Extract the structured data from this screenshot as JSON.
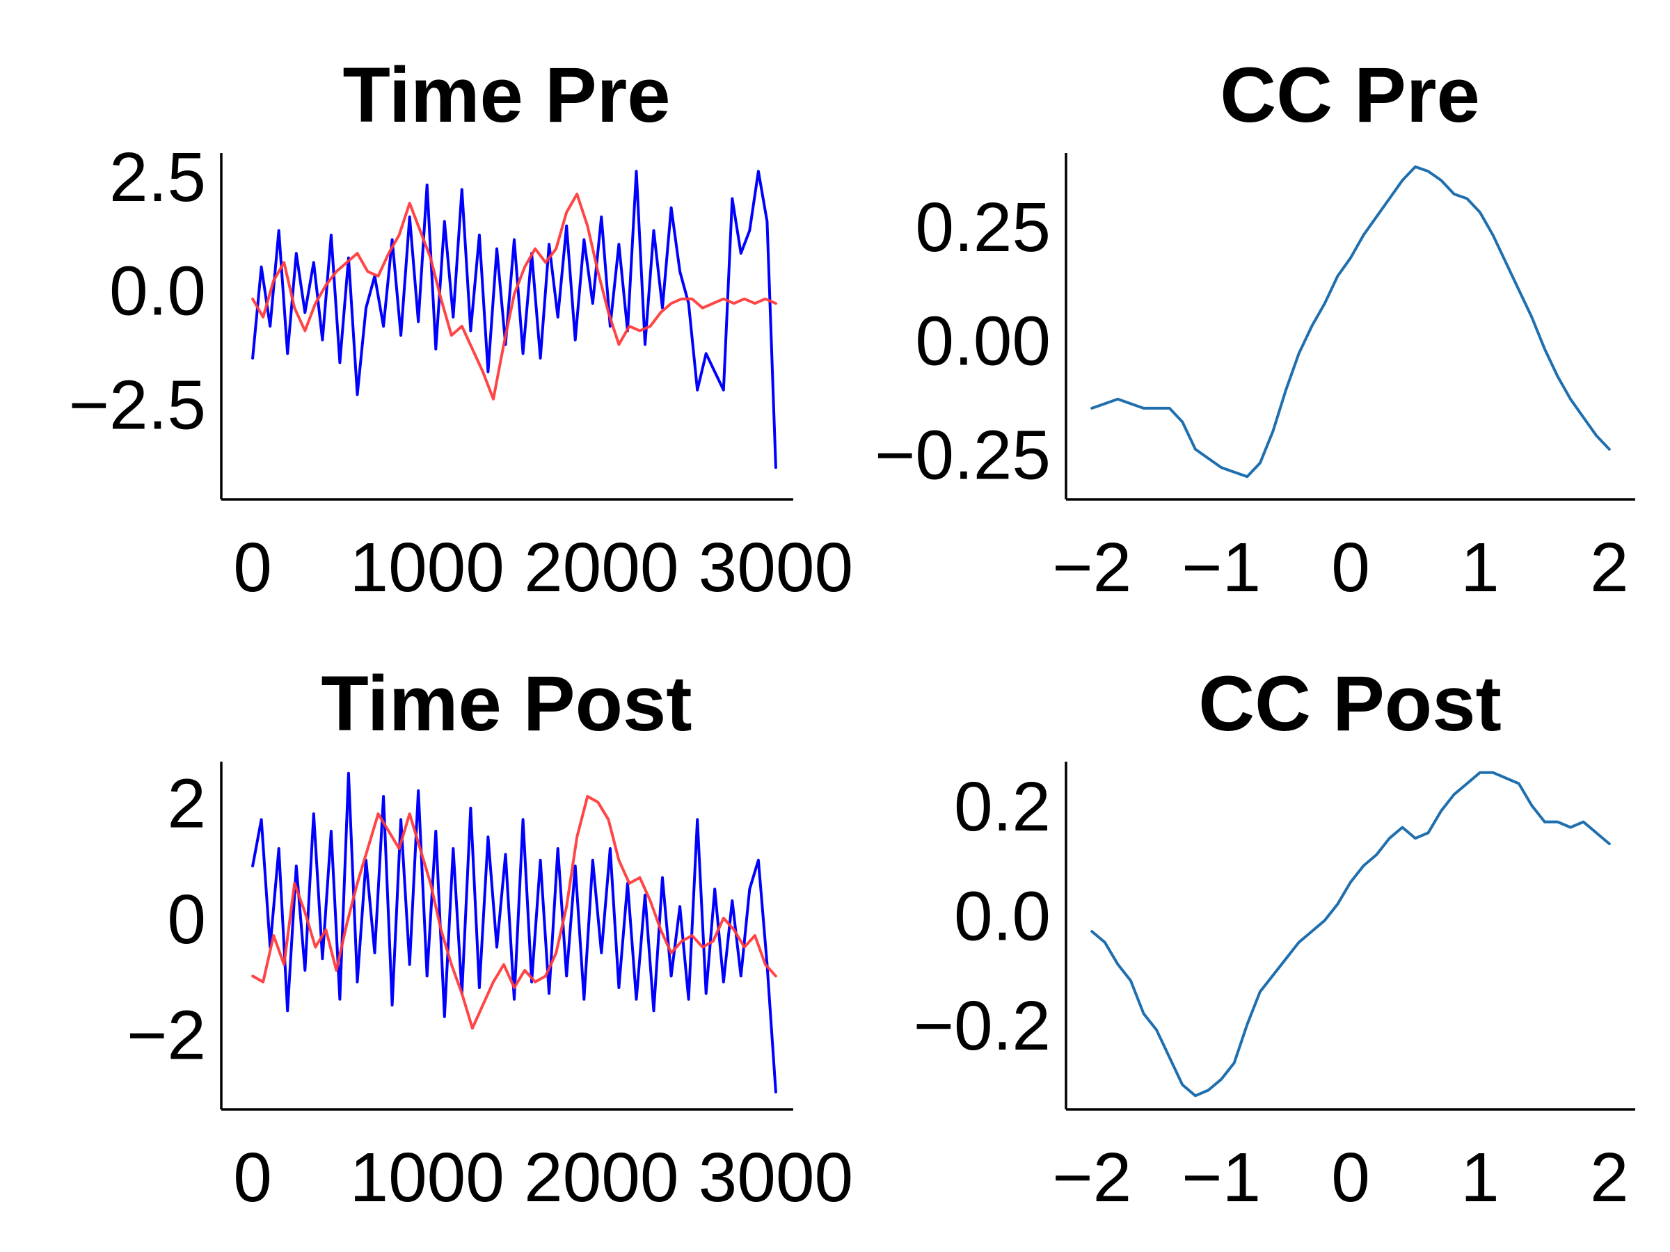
{
  "colors": {
    "time_primary": "#0000ff",
    "time_secondary": "#ff3b3b",
    "cc": "#1f6fae",
    "axes": "#000000",
    "background": "#ffffff"
  },
  "chart_data": [
    {
      "type": "line",
      "title": "Time Pre",
      "xlabel": "",
      "ylabel": "",
      "xlim": [
        -180,
        3100
      ],
      "ylim": [
        -4.6,
        3.0
      ],
      "xticks": [
        0,
        1000,
        2000,
        3000
      ],
      "xtick_labels": [
        "0",
        "1000",
        "2000",
        "3000"
      ],
      "yticks": [
        -2.5,
        0.0,
        2.5
      ],
      "ytick_labels": [
        "−2.5",
        "0.0",
        "2.5"
      ],
      "grid": false,
      "legend": "none",
      "series": [
        {
          "color": "#0000ff",
          "x": [
            0,
            50,
            100,
            150,
            200,
            250,
            300,
            350,
            400,
            450,
            500,
            550,
            600,
            650,
            700,
            750,
            800,
            850,
            900,
            950,
            1000,
            1050,
            1100,
            1150,
            1200,
            1250,
            1300,
            1350,
            1400,
            1450,
            1500,
            1550,
            1600,
            1650,
            1700,
            1750,
            1800,
            1850,
            1900,
            1950,
            2000,
            2050,
            2100,
            2150,
            2200,
            2250,
            2300,
            2350,
            2400,
            2450,
            2500,
            2550,
            2600,
            2650,
            2700,
            2750,
            2800,
            2850,
            2900,
            2950,
            3000
          ],
          "y": [
            -1.5,
            0.5,
            -0.8,
            1.3,
            -1.4,
            0.8,
            -0.5,
            0.6,
            -1.1,
            1.2,
            -1.6,
            0.7,
            -2.3,
            -0.4,
            0.3,
            -0.8,
            1.1,
            -1.0,
            1.6,
            -0.7,
            2.3,
            -1.3,
            1.5,
            -0.6,
            2.2,
            -0.9,
            1.2,
            -1.8,
            0.9,
            -1.2,
            1.1,
            -1.4,
            0.8,
            -1.5,
            1.0,
            -0.6,
            1.4,
            -1.1,
            1.1,
            -0.3,
            1.6,
            -0.8,
            1.0,
            -0.9,
            2.6,
            -1.2,
            1.3,
            -0.4,
            1.8,
            0.4,
            -0.3,
            -2.2,
            -1.4,
            -1.8,
            -2.2,
            2.0,
            0.8,
            1.3,
            2.6,
            1.5,
            -3.9
          ]
        },
        {
          "color": "#ff3b3b",
          "x": [
            0,
            60,
            120,
            180,
            240,
            300,
            360,
            420,
            480,
            540,
            600,
            660,
            720,
            780,
            840,
            900,
            960,
            1020,
            1080,
            1140,
            1200,
            1260,
            1320,
            1380,
            1440,
            1500,
            1560,
            1620,
            1680,
            1740,
            1800,
            1860,
            1920,
            1980,
            2040,
            2100,
            2160,
            2220,
            2280,
            2340,
            2400,
            2460,
            2520,
            2580,
            2640,
            2700,
            2760,
            2820,
            2880,
            2940,
            3000
          ],
          "y": [
            -0.2,
            -0.6,
            0.2,
            0.6,
            -0.4,
            -0.9,
            -0.3,
            0.1,
            0.4,
            0.6,
            0.8,
            0.4,
            0.3,
            0.8,
            1.2,
            1.9,
            1.3,
            0.7,
            -0.2,
            -1.0,
            -0.8,
            -1.3,
            -1.8,
            -2.4,
            -1.2,
            -0.1,
            0.5,
            0.9,
            0.6,
            0.9,
            1.7,
            2.1,
            1.4,
            0.4,
            -0.5,
            -1.2,
            -0.8,
            -0.9,
            -0.8,
            -0.5,
            -0.3,
            -0.2,
            -0.2,
            -0.4,
            -0.3,
            -0.2,
            -0.3,
            -0.2,
            -0.3,
            -0.2,
            -0.3
          ]
        }
      ]
    },
    {
      "type": "line",
      "title": "CC Pre",
      "xlabel": "",
      "ylabel": "",
      "xlim": [
        -2.2,
        2.2
      ],
      "ylim": [
        -0.35,
        0.41
      ],
      "xticks": [
        -2,
        -1,
        0,
        1,
        2
      ],
      "xtick_labels": [
        "−2",
        "−1",
        "0",
        "1",
        "2"
      ],
      "yticks": [
        -0.25,
        0.0,
        0.25
      ],
      "ytick_labels": [
        "−0.25",
        "0.00",
        "0.25"
      ],
      "grid": false,
      "legend": "none",
      "series": [
        {
          "color": "#1f6fae",
          "x": [
            -2.0,
            -1.9,
            -1.8,
            -1.7,
            -1.6,
            -1.5,
            -1.4,
            -1.3,
            -1.2,
            -1.1,
            -1.0,
            -0.9,
            -0.8,
            -0.7,
            -0.6,
            -0.5,
            -0.4,
            -0.3,
            -0.2,
            -0.1,
            0.0,
            0.1,
            0.2,
            0.3,
            0.4,
            0.5,
            0.6,
            0.7,
            0.8,
            0.9,
            1.0,
            1.1,
            1.2,
            1.3,
            1.4,
            1.5,
            1.6,
            1.7,
            1.8,
            1.9,
            2.0
          ],
          "y": [
            -0.15,
            -0.14,
            -0.13,
            -0.14,
            -0.15,
            -0.15,
            -0.15,
            -0.18,
            -0.24,
            -0.26,
            -0.28,
            -0.29,
            -0.3,
            -0.27,
            -0.2,
            -0.11,
            -0.03,
            0.03,
            0.08,
            0.14,
            0.18,
            0.23,
            0.27,
            0.31,
            0.35,
            0.38,
            0.37,
            0.35,
            0.32,
            0.31,
            0.28,
            0.23,
            0.17,
            0.11,
            0.05,
            -0.02,
            -0.08,
            -0.13,
            -0.17,
            -0.21,
            -0.24
          ]
        }
      ]
    },
    {
      "type": "line",
      "title": "Time Post",
      "xlabel": "",
      "ylabel": "",
      "xlim": [
        -180,
        3100
      ],
      "ylim": [
        -3.3,
        2.7
      ],
      "xticks": [
        0,
        1000,
        2000,
        3000
      ],
      "xtick_labels": [
        "0",
        "1000",
        "2000",
        "3000"
      ],
      "yticks": [
        -2,
        0,
        2
      ],
      "ytick_labels": [
        "−2",
        "0",
        "2"
      ],
      "grid": false,
      "legend": "none",
      "series": [
        {
          "color": "#0000ff",
          "x": [
            0,
            50,
            100,
            150,
            200,
            250,
            300,
            350,
            400,
            450,
            500,
            550,
            600,
            650,
            700,
            750,
            800,
            850,
            900,
            950,
            1000,
            1050,
            1100,
            1150,
            1200,
            1250,
            1300,
            1350,
            1400,
            1450,
            1500,
            1550,
            1600,
            1650,
            1700,
            1750,
            1800,
            1850,
            1900,
            1950,
            2000,
            2050,
            2100,
            2150,
            2200,
            2250,
            2300,
            2350,
            2400,
            2450,
            2500,
            2550,
            2600,
            2650,
            2700,
            2750,
            2800,
            2850,
            2900,
            2950,
            3000
          ],
          "y": [
            0.9,
            1.7,
            -0.5,
            1.2,
            -1.6,
            0.9,
            -0.9,
            1.8,
            -0.7,
            1.5,
            -1.4,
            2.5,
            -1.1,
            1.0,
            -0.6,
            2.1,
            -1.5,
            1.7,
            -0.8,
            2.2,
            -1.0,
            1.5,
            -1.7,
            1.2,
            -1.3,
            1.9,
            -1.2,
            1.4,
            -0.5,
            1.1,
            -1.4,
            1.7,
            -1.1,
            1.0,
            -1.3,
            1.2,
            -1.0,
            0.9,
            -1.4,
            1.0,
            -0.6,
            1.2,
            -1.2,
            0.6,
            -1.4,
            0.4,
            -1.6,
            0.7,
            -1.0,
            0.2,
            -1.4,
            1.7,
            -1.3,
            0.5,
            -1.1,
            0.3,
            -1.0,
            0.5,
            1.0,
            -0.8,
            -3.0
          ]
        },
        {
          "color": "#ff3b3b",
          "x": [
            0,
            60,
            120,
            180,
            240,
            300,
            360,
            420,
            480,
            540,
            600,
            660,
            720,
            780,
            840,
            900,
            960,
            1020,
            1080,
            1140,
            1200,
            1260,
            1320,
            1380,
            1440,
            1500,
            1560,
            1620,
            1680,
            1740,
            1800,
            1860,
            1920,
            1980,
            2040,
            2100,
            2160,
            2220,
            2280,
            2340,
            2400,
            2460,
            2520,
            2580,
            2640,
            2700,
            2760,
            2820,
            2880,
            2940,
            3000
          ],
          "y": [
            -1.0,
            -1.1,
            -0.3,
            -0.8,
            0.6,
            0.1,
            -0.5,
            -0.2,
            -0.9,
            -0.1,
            0.6,
            1.2,
            1.8,
            1.5,
            1.2,
            1.8,
            1.2,
            0.6,
            -0.2,
            -0.8,
            -1.3,
            -1.9,
            -1.5,
            -1.1,
            -0.8,
            -1.2,
            -0.9,
            -1.1,
            -1.0,
            -0.6,
            0.2,
            1.4,
            2.1,
            2.0,
            1.7,
            1.0,
            0.6,
            0.7,
            0.3,
            -0.2,
            -0.6,
            -0.4,
            -0.3,
            -0.5,
            -0.4,
            0.0,
            -0.2,
            -0.5,
            -0.3,
            -0.8,
            -1.0
          ]
        }
      ]
    },
    {
      "type": "line",
      "title": "CC Post",
      "xlabel": "",
      "ylabel": "",
      "xlim": [
        -2.2,
        2.2
      ],
      "ylim": [
        -0.355,
        0.28
      ],
      "xticks": [
        -2,
        -1,
        0,
        1,
        2
      ],
      "xtick_labels": [
        "−2",
        "−1",
        "0",
        "1",
        "2"
      ],
      "yticks": [
        -0.2,
        0.0,
        0.2
      ],
      "ytick_labels": [
        "−0.2",
        "0.0",
        "0.2"
      ],
      "grid": false,
      "legend": "none",
      "series": [
        {
          "color": "#1f6fae",
          "x": [
            -2.0,
            -1.9,
            -1.8,
            -1.7,
            -1.6,
            -1.5,
            -1.4,
            -1.3,
            -1.2,
            -1.1,
            -1.0,
            -0.9,
            -0.8,
            -0.7,
            -0.6,
            -0.5,
            -0.4,
            -0.3,
            -0.2,
            -0.1,
            0.0,
            0.1,
            0.2,
            0.3,
            0.4,
            0.5,
            0.6,
            0.7,
            0.8,
            0.9,
            1.0,
            1.1,
            1.2,
            1.3,
            1.4,
            1.5,
            1.6,
            1.7,
            1.8,
            1.9,
            2.0
          ],
          "y": [
            -0.03,
            -0.05,
            -0.09,
            -0.12,
            -0.18,
            -0.21,
            -0.26,
            -0.31,
            -0.33,
            -0.32,
            -0.3,
            -0.27,
            -0.2,
            -0.14,
            -0.11,
            -0.08,
            -0.05,
            -0.03,
            -0.01,
            0.02,
            0.06,
            0.09,
            0.11,
            0.14,
            0.16,
            0.14,
            0.15,
            0.19,
            0.22,
            0.24,
            0.26,
            0.26,
            0.25,
            0.24,
            0.2,
            0.17,
            0.17,
            0.16,
            0.17,
            0.15,
            0.13
          ]
        }
      ]
    }
  ]
}
